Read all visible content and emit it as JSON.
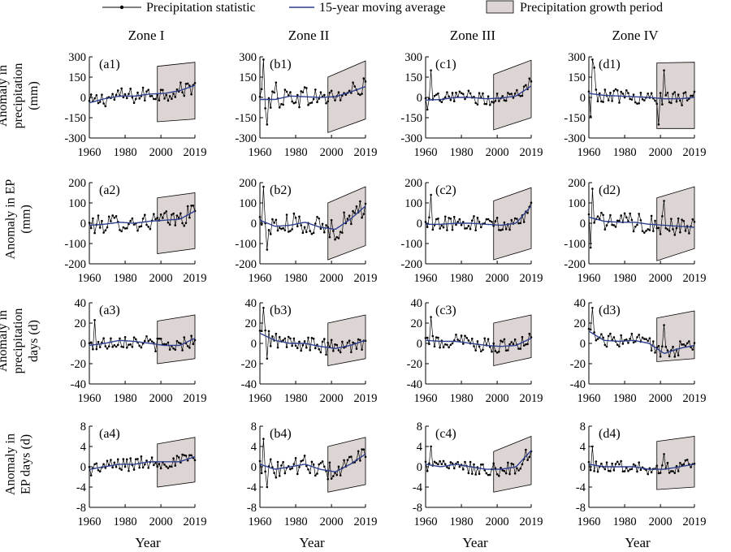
{
  "legend": {
    "stat_label": "Precipitation statistic",
    "avg_label": "15-year moving average",
    "growth_label": "Precipitation growth period"
  },
  "zones": [
    "Zone I",
    "Zone II",
    "Zone III",
    "Zone IV"
  ],
  "xlabel": "Year",
  "colors": {
    "moving_average": "#2e3f8f",
    "statistic": "#000000",
    "growth_shade": "#ddd5d3"
  },
  "chart_data": {
    "type": "line",
    "x_range": [
      1960,
      2019
    ],
    "x_ticks": [
      "1960",
      "1980",
      "2000",
      "2019"
    ],
    "grid": false,
    "growth_period": [
      1998,
      2019
    ],
    "rows": [
      {
        "ylabel": [
          "Anomaly in",
          "precipitation",
          "(mm)"
        ],
        "ylim": [
          -300,
          300
        ],
        "yticks": [
          -300,
          -150,
          0,
          150,
          300
        ],
        "panels": [
          {
            "label": "(a1)",
            "band_lower": [
              -180,
              -160
            ],
            "band_upper": [
              230,
              260
            ],
            "ma": [
              -40,
              -10,
              10,
              10,
              25,
              30,
              50,
              90
            ],
            "amp": 60,
            "spikes": []
          },
          {
            "label": "(b1)",
            "band_lower": [
              -260,
              -160
            ],
            "band_upper": [
              150,
              270
            ],
            "ma": [
              -15,
              -15,
              10,
              5,
              0,
              5,
              40,
              80
            ],
            "amp": 80,
            "spikes": [
              [
                1962,
                280
              ],
              [
                1964,
                -200
              ],
              [
                1969,
                110
              ]
            ]
          },
          {
            "label": "(c1)",
            "band_lower": [
              -240,
              -150
            ],
            "band_upper": [
              170,
              275
            ],
            "ma": [
              -20,
              -15,
              0,
              0,
              -10,
              -5,
              10,
              85
            ],
            "amp": 50,
            "spikes": [
              [
                1963,
                200
              ],
              [
                1961,
                -90
              ],
              [
                2018,
                140
              ]
            ]
          },
          {
            "label": "(d1)",
            "band_lower": [
              -230,
              -230
            ],
            "band_upper": [
              255,
              260
            ],
            "ma": [
              30,
              15,
              10,
              5,
              0,
              -10,
              -10,
              0
            ],
            "amp": 50,
            "spikes": [
              [
                1962,
                280
              ],
              [
                1963,
                220
              ],
              [
                1961,
                -140
              ],
              [
                2002,
                200
              ],
              [
                1999,
                -200
              ]
            ]
          }
        ]
      },
      {
        "ylabel": [
          "Anomaly in EP",
          "(mm)"
        ],
        "ylim": [
          -200,
          200
        ],
        "yticks": [
          -200,
          -100,
          0,
          100,
          200
        ],
        "panels": [
          {
            "label": "(a2)",
            "band_lower": [
              -150,
              -125
            ],
            "band_upper": [
              125,
              150
            ],
            "ma": [
              -10,
              -5,
              5,
              0,
              10,
              15,
              20,
              60
            ],
            "amp": 45,
            "spikes": []
          },
          {
            "label": "(b2)",
            "band_lower": [
              -180,
              -110
            ],
            "band_upper": [
              100,
              180
            ],
            "ma": [
              15,
              -15,
              -10,
              5,
              -20,
              -30,
              20,
              85
            ],
            "amp": 55,
            "spikes": [
              [
                1962,
                180
              ],
              [
                1964,
                -130
              ]
            ]
          },
          {
            "label": "(c2)",
            "band_lower": [
              -180,
              -125
            ],
            "band_upper": [
              110,
              175
            ],
            "ma": [
              -5,
              -5,
              0,
              0,
              -5,
              -10,
              0,
              85
            ],
            "amp": 40,
            "spikes": [
              [
                1963,
                140
              ]
            ]
          },
          {
            "label": "(d2)",
            "band_lower": [
              -185,
              -125
            ],
            "band_upper": [
              125,
              180
            ],
            "ma": [
              30,
              10,
              5,
              5,
              -5,
              -10,
              -15,
              -20
            ],
            "amp": 45,
            "spikes": [
              [
                1962,
                170
              ],
              [
                1961,
                -120
              ],
              [
                2002,
                110
              ]
            ]
          }
        ]
      },
      {
        "ylabel": [
          "Anomaly in",
          "precipitation",
          "days (d)"
        ],
        "ylim": [
          -40,
          40
        ],
        "yticks": [
          -40,
          -20,
          0,
          20,
          40
        ],
        "panels": [
          {
            "label": "(a3)",
            "band_lower": [
              -20,
              -15
            ],
            "band_upper": [
              22,
              28
            ],
            "ma": [
              -2,
              0,
              3,
              2,
              0,
              -2,
              -2,
              5
            ],
            "amp": 7,
            "spikes": [
              [
                1963,
                23
              ]
            ]
          },
          {
            "label": "(b3)",
            "band_lower": [
              -22,
              -15
            ],
            "band_upper": [
              20,
              28
            ],
            "ma": [
              10,
              3,
              0,
              0,
              -3,
              -5,
              -2,
              3
            ],
            "amp": 8,
            "spikes": [
              [
                1962,
                35
              ],
              [
                1964,
                -15
              ]
            ]
          },
          {
            "label": "(c3)",
            "band_lower": [
              -22,
              -14
            ],
            "band_upper": [
              20,
              28
            ],
            "ma": [
              3,
              2,
              2,
              0,
              -2,
              -3,
              -2,
              5
            ],
            "amp": 7,
            "spikes": [
              [
                1963,
                26
              ]
            ]
          },
          {
            "label": "(d3)",
            "band_lower": [
              -18,
              -15
            ],
            "band_upper": [
              25,
              32
            ],
            "ma": [
              12,
              3,
              2,
              3,
              0,
              -10,
              -5,
              -2
            ],
            "amp": 7,
            "spikes": [
              [
                1962,
                35
              ],
              [
                2002,
                18
              ]
            ]
          }
        ]
      },
      {
        "ylabel": [
          "Anomaly in",
          "EP days (d)"
        ],
        "ylim": [
          -8,
          8
        ],
        "yticks": [
          -8,
          -4,
          0,
          4,
          8
        ],
        "panels": [
          {
            "label": "(a4)",
            "band_lower": [
              -4,
              -3
            ],
            "band_upper": [
              4.5,
              5.8
            ],
            "ma": [
              -0.5,
              0,
              0.5,
              0.5,
              1,
              1,
              1,
              2
            ],
            "amp": 1.4,
            "spikes": []
          },
          {
            "label": "(b4)",
            "band_lower": [
              -5,
              -3.5
            ],
            "band_upper": [
              4,
              5.8
            ],
            "ma": [
              0.5,
              -0.5,
              0,
              0.5,
              -0.5,
              -1,
              0.5,
              2.5
            ],
            "amp": 1.8,
            "spikes": [
              [
                1962,
                5.5
              ],
              [
                1964,
                -4
              ]
            ]
          },
          {
            "label": "(c4)",
            "band_lower": [
              -5,
              -3.5
            ],
            "band_upper": [
              3,
              6
            ],
            "ma": [
              0.5,
              0,
              0.5,
              0,
              -0.5,
              -0.5,
              0,
              3.2
            ],
            "amp": 1.4,
            "spikes": [
              [
                1963,
                4
              ]
            ]
          },
          {
            "label": "(d4)",
            "band_lower": [
              -4.5,
              -4
            ],
            "band_upper": [
              5,
              6
            ],
            "ma": [
              0.5,
              0,
              0,
              0,
              -0.5,
              -0.5,
              0,
              0.5
            ],
            "amp": 1.2,
            "spikes": [
              [
                1962,
                4
              ],
              [
                2002,
                2.5
              ]
            ]
          }
        ]
      }
    ]
  }
}
